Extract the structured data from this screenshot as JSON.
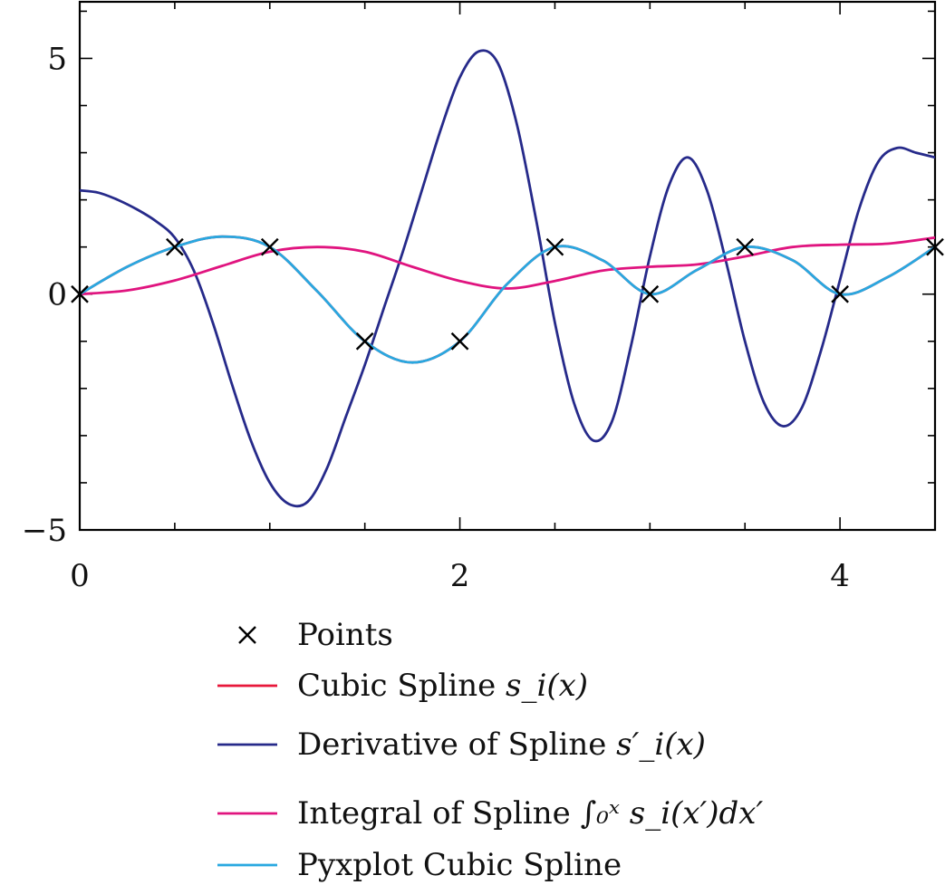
{
  "chart_data": {
    "type": "line",
    "title": "",
    "xlabel": "",
    "ylabel": "",
    "xlim": [
      0,
      4.5
    ],
    "ylim": [
      -5,
      6.2
    ],
    "x_ticks": [
      {
        "value": 0,
        "label": "0"
      },
      {
        "value": 2,
        "label": "2"
      },
      {
        "value": 4,
        "label": "4"
      }
    ],
    "y_ticks": [
      {
        "value": -5,
        "label": "−5"
      },
      {
        "value": 0,
        "label": "0"
      },
      {
        "value": 5,
        "label": "5"
      }
    ],
    "x_minor_step": 0.5,
    "y_minor_step": 1,
    "grid": false,
    "legend_position": "below",
    "points": {
      "name": "Points",
      "marker": "x",
      "color": "#000000",
      "x": [
        0,
        0.5,
        1,
        1.5,
        2,
        2.5,
        3,
        3.5,
        4,
        4.5
      ],
      "y": [
        0,
        1,
        1,
        -1,
        -1,
        1,
        0,
        1,
        0,
        1
      ]
    },
    "series": [
      {
        "name": "Cubic Spline",
        "math": "s_i(x)",
        "color": "#e8173a",
        "x": [
          0,
          0.25,
          0.5,
          0.75,
          1,
          1.25,
          1.5,
          1.75,
          2,
          2.25,
          2.5,
          2.75,
          3,
          3.25,
          3.5,
          3.75,
          4,
          4.25,
          4.5
        ],
        "y": [
          0,
          0.58,
          1,
          1.22,
          1,
          0.06,
          -1,
          -1.45,
          -1,
          0.22,
          1,
          0.72,
          0,
          0.52,
          1,
          0.72,
          0,
          0.36,
          1
        ]
      },
      {
        "name": "Derivative of Spline",
        "math": "s′_i(x)",
        "color": "#262a8a",
        "x": [
          0,
          0.1,
          0.2,
          0.3,
          0.4,
          0.5,
          0.6,
          0.7,
          0.8,
          0.9,
          1.0,
          1.1,
          1.2,
          1.3,
          1.4,
          1.5,
          1.6,
          1.7,
          1.8,
          1.9,
          2.0,
          2.1,
          2.2,
          2.3,
          2.4,
          2.5,
          2.6,
          2.7,
          2.8,
          2.9,
          3.0,
          3.1,
          3.2,
          3.3,
          3.4,
          3.5,
          3.6,
          3.7,
          3.8,
          3.9,
          4.0,
          4.1,
          4.2,
          4.3,
          4.4,
          4.5
        ],
        "y": [
          2.2,
          2.15,
          2.0,
          1.8,
          1.55,
          1.2,
          0.5,
          -0.6,
          -1.9,
          -3.1,
          -4.0,
          -4.45,
          -4.4,
          -3.7,
          -2.6,
          -1.5,
          -0.3,
          0.9,
          2.2,
          3.5,
          4.6,
          5.15,
          4.9,
          3.6,
          1.6,
          -0.6,
          -2.3,
          -3.1,
          -2.7,
          -1.1,
          0.8,
          2.3,
          2.9,
          2.2,
          0.7,
          -1.0,
          -2.3,
          -2.8,
          -2.4,
          -1.2,
          0.3,
          1.8,
          2.8,
          3.1,
          3.0,
          2.9
        ]
      },
      {
        "name": "Integral of Spline",
        "math": "∫₀ˣ s_i(x′)dx′",
        "color": "#e0147f",
        "x": [
          0,
          0.25,
          0.5,
          0.75,
          1,
          1.25,
          1.5,
          1.75,
          2,
          2.25,
          2.5,
          2.75,
          3,
          3.25,
          3.5,
          3.75,
          4,
          4.25,
          4.5
        ],
        "y": [
          0,
          0.08,
          0.29,
          0.6,
          0.9,
          1.0,
          0.9,
          0.58,
          0.28,
          0.12,
          0.28,
          0.5,
          0.58,
          0.63,
          0.8,
          1.0,
          1.05,
          1.07,
          1.2
        ]
      },
      {
        "name": "Pyxplot Cubic Spline",
        "math": "",
        "color": "#29a8e0",
        "x": [
          0,
          0.25,
          0.5,
          0.75,
          1,
          1.25,
          1.5,
          1.75,
          2,
          2.25,
          2.5,
          2.75,
          3,
          3.25,
          3.5,
          3.75,
          4,
          4.25,
          4.5
        ],
        "y": [
          0,
          0.58,
          1,
          1.22,
          1,
          0.06,
          -1,
          -1.45,
          -1,
          0.22,
          1,
          0.72,
          0,
          0.52,
          1,
          0.72,
          0,
          0.36,
          1
        ]
      }
    ]
  },
  "legend": {
    "items": [
      {
        "key": "points",
        "label": "Points",
        "math": ""
      },
      {
        "key": "spline",
        "label": "Cubic Spline ",
        "math": "s_i(x)"
      },
      {
        "key": "derivative",
        "label": "Derivative of Spline ",
        "math": "s′_i(x)"
      },
      {
        "key": "integral",
        "label": "Integral of Spline ",
        "math": "∫₀ˣ s_i(x′)dx′"
      },
      {
        "key": "pyxplot",
        "label": "Pyxplot Cubic Spline",
        "math": ""
      }
    ]
  }
}
